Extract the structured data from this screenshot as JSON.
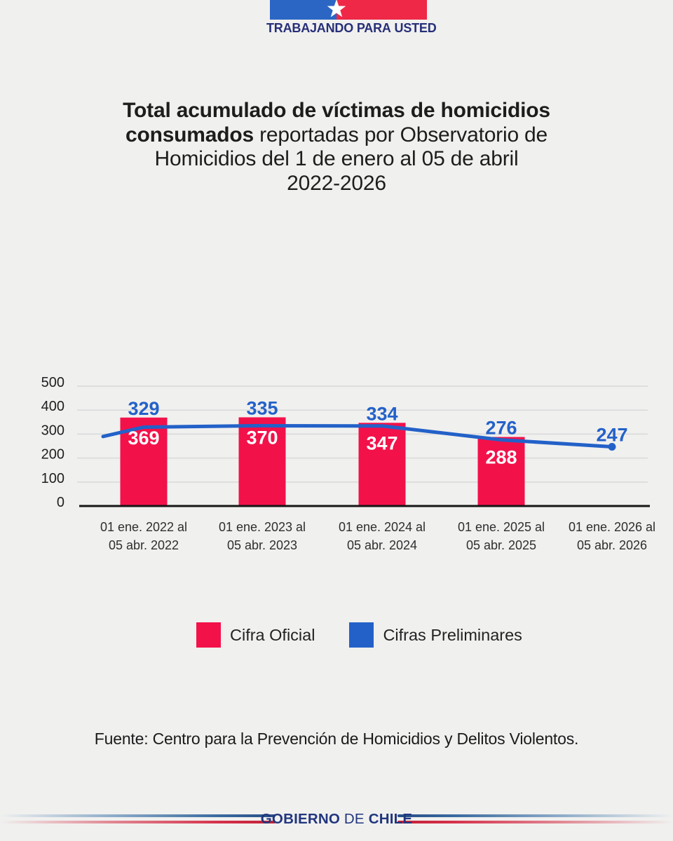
{
  "header": {
    "brand": [
      "TRABAJANDO",
      "PARA",
      "USTED"
    ]
  },
  "title": {
    "lines": [
      {
        "b": "Total acumulado de víctimas de homicidios",
        "r": ""
      },
      {
        "b": "consumados",
        "r": " reportadas por Observatorio de"
      },
      {
        "b": "",
        "r": "Homicidios del 1 de enero al 05 de abril"
      },
      {
        "b": "",
        "r": "2022-2026"
      }
    ]
  },
  "chart_data": {
    "type": "bar+line",
    "title": "Total acumulado de víctimas de homicidios consumados reportadas por Observatorio de Homicidios del 1 de enero al 05 de abril 2022-2026",
    "categories": [
      {
        "line1": "01 ene. 2022 al",
        "line2": "05 abr. 2022"
      },
      {
        "line1": "01 ene. 2023 al",
        "line2": "05 abr. 2023"
      },
      {
        "line1": "01 ene. 2024 al",
        "line2": "05 abr. 2024"
      },
      {
        "line1": "01 ene. 2025 al",
        "line2": "05 abr. 2025"
      },
      {
        "line1": "01 ene. 2026 al",
        "line2": "05 abr. 2026"
      }
    ],
    "series": [
      {
        "name": "Cifra Oficial",
        "type": "bar",
        "color": "#F3114A",
        "label_color": "#FFFFFF",
        "values": [
          369,
          370,
          347,
          288,
          null
        ]
      },
      {
        "name": "Cifras Preliminares",
        "type": "line",
        "color": "#2361C8",
        "values": [
          329,
          335,
          334,
          276,
          247
        ]
      }
    ],
    "xlabel": "",
    "ylabel": "",
    "ylim": [
      0,
      500
    ],
    "yticks": [
      0,
      100,
      200,
      300,
      400,
      500
    ],
    "grid": true,
    "legend_position": "bottom",
    "line_tail_start_value": 290
  },
  "legend": {
    "items": [
      {
        "label": "Cifra Oficial",
        "color": "#F3114A"
      },
      {
        "label": "Cifras Preliminares",
        "color": "#2361C8"
      }
    ]
  },
  "source": {
    "text": "Fuente: Centro para la Prevención de Homicidios y Delitos Violentos."
  },
  "footer": {
    "brand": [
      "GOBIERNO",
      "DE",
      "CHILE"
    ]
  }
}
